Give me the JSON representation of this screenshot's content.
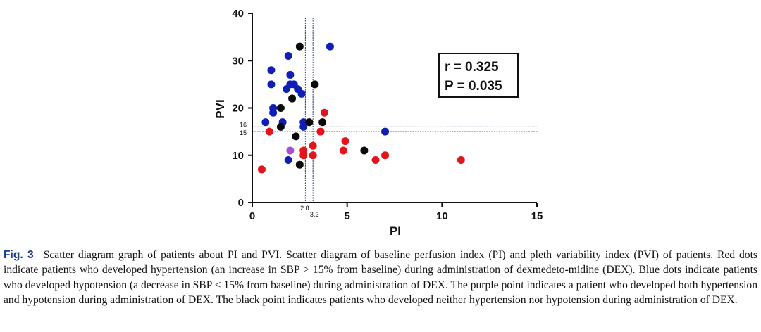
{
  "chart_data": {
    "type": "scatter",
    "xlabel": "PI",
    "ylabel": "PVI",
    "xlim": [
      0,
      15
    ],
    "ylim": [
      0,
      40
    ],
    "x_ticks": [
      0,
      5,
      10,
      15
    ],
    "y_ticks": [
      0,
      10,
      20,
      30,
      40
    ],
    "reference_lines": {
      "vertical": [
        {
          "value": 2.8,
          "label": "2.8"
        },
        {
          "value": 3.2,
          "label": "3.2"
        }
      ],
      "horizontal": [
        {
          "value": 16,
          "label": "16"
        },
        {
          "value": 15,
          "label": "15"
        }
      ]
    },
    "annotation": {
      "r": "r = 0.325",
      "p": "P = 0.035"
    },
    "colors": {
      "hypertension": "#e3141b",
      "hypotension": "#0f1fb5",
      "both": "#a64fd6",
      "neither": "#0a0a0a",
      "ref_line": "#2a4a86"
    },
    "series": [
      {
        "name": "hypertension",
        "points": [
          [
            0.5,
            7
          ],
          [
            0.9,
            15
          ],
          [
            2.7,
            10
          ],
          [
            2.7,
            11
          ],
          [
            3.2,
            12
          ],
          [
            3.2,
            10
          ],
          [
            3.6,
            15
          ],
          [
            3.8,
            19
          ],
          [
            4.8,
            11
          ],
          [
            4.9,
            13
          ],
          [
            6.5,
            9
          ],
          [
            7.0,
            10
          ],
          [
            11.0,
            9
          ]
        ]
      },
      {
        "name": "hypotension",
        "points": [
          [
            0.7,
            17
          ],
          [
            1.0,
            28
          ],
          [
            1.0,
            25
          ],
          [
            1.1,
            20
          ],
          [
            1.1,
            19
          ],
          [
            1.6,
            17
          ],
          [
            1.8,
            24
          ],
          [
            1.9,
            31
          ],
          [
            2.0,
            27
          ],
          [
            2.0,
            25
          ],
          [
            2.2,
            25
          ],
          [
            2.4,
            24
          ],
          [
            2.6,
            23
          ],
          [
            2.7,
            17
          ],
          [
            2.7,
            16
          ],
          [
            4.1,
            33
          ],
          [
            7.0,
            15
          ],
          [
            1.9,
            9
          ]
        ]
      },
      {
        "name": "both",
        "points": [
          [
            2.0,
            11
          ]
        ]
      },
      {
        "name": "neither",
        "points": [
          [
            1.5,
            20
          ],
          [
            1.5,
            16
          ],
          [
            2.1,
            22
          ],
          [
            2.3,
            14
          ],
          [
            2.5,
            8
          ],
          [
            2.5,
            33
          ],
          [
            3.0,
            17
          ],
          [
            3.3,
            25
          ],
          [
            3.7,
            17
          ],
          [
            5.9,
            11
          ]
        ]
      }
    ]
  },
  "caption": {
    "label": "Fig. 3",
    "text": "Scatter diagram graph of patients about PI and PVI. Scatter diagram of baseline perfusion index (PI) and pleth variability index (PVI) of patients. Red dots indicate patients who developed hypertension (an increase in SBP > 15% from baseline) during administration of dexmedeto-midine (DEX). Blue dots indicate patients who developed hypotension (a decrease in SBP < 15% from baseline) during administration of DEX. The purple point indicates a patient who developed both hypertension and hypotension during administration of DEX. The black point indicates patients who developed neither hypertension nor hypotension during administration of DEX."
  }
}
